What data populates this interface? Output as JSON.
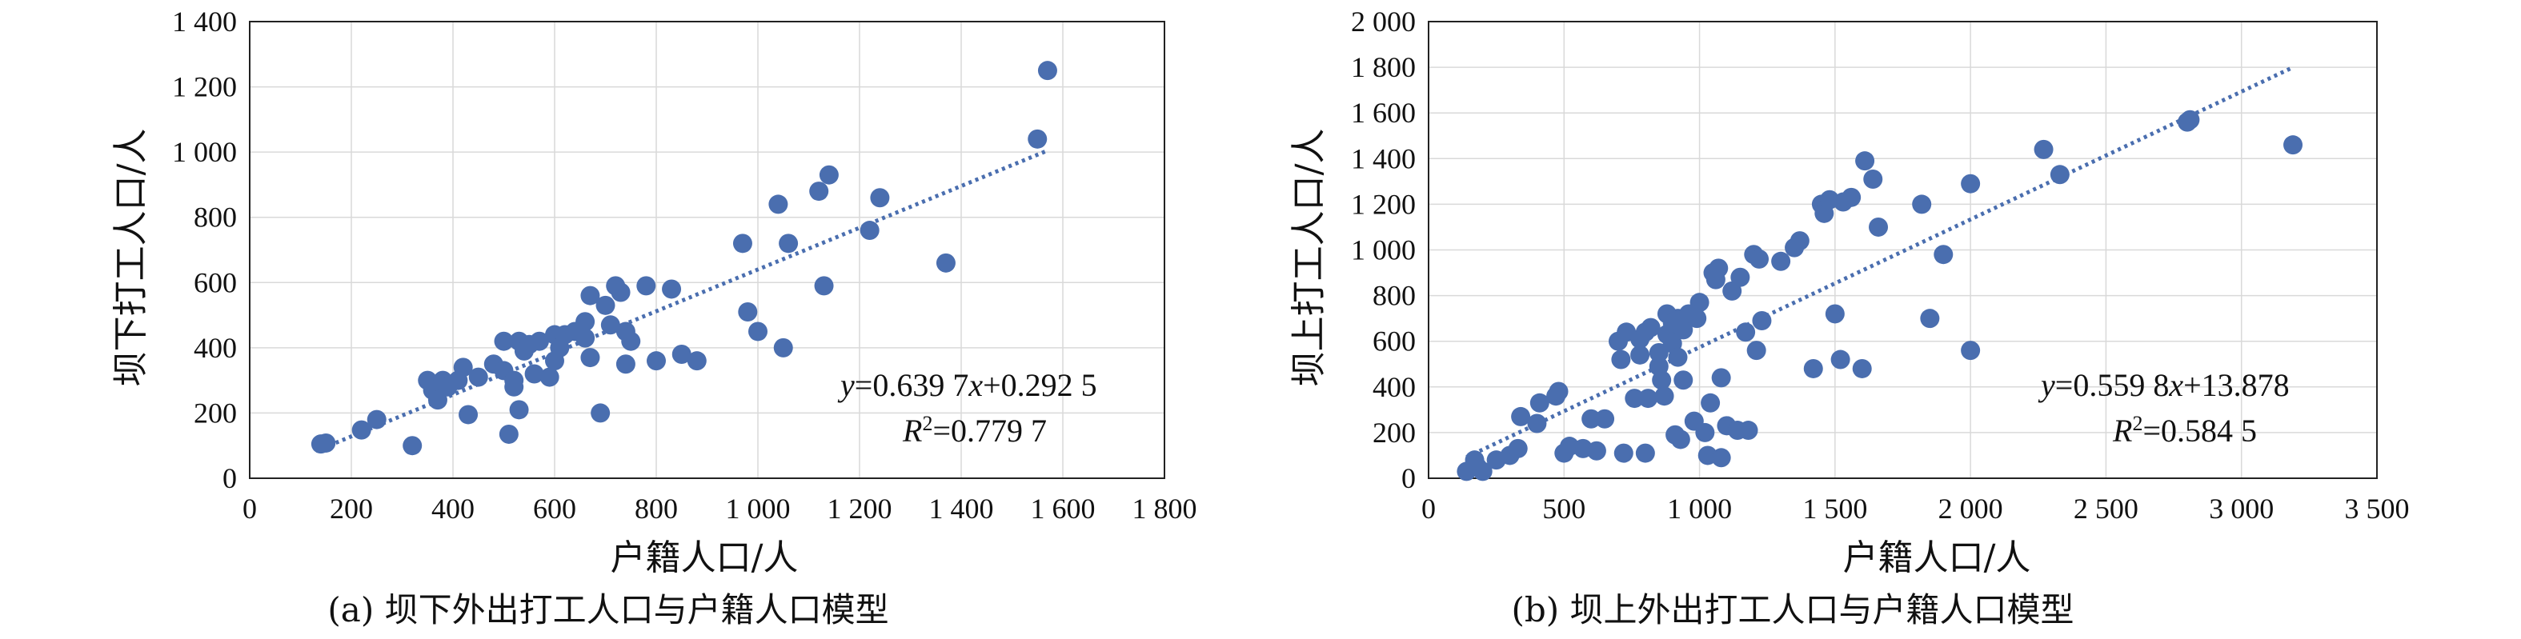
{
  "chart_data": [
    {
      "type": "scatter",
      "caption": "(a) 坝下外出打工人口与户籍人口模型",
      "xlabel": "户籍人口/人",
      "ylabel": "坝下打工人口/人",
      "xlim": [
        0,
        1800
      ],
      "ylim": [
        0,
        1400
      ],
      "xticks": [
        0,
        200,
        400,
        600,
        800,
        1000,
        1200,
        1400,
        1600,
        1800
      ],
      "yticks": [
        0,
        200,
        400,
        600,
        800,
        1000,
        1200,
        1400
      ],
      "xtick_labels": [
        "0",
        "200",
        "400",
        "600",
        "800",
        "1 000",
        "1 200",
        "1 400",
        "1 600",
        "1 800"
      ],
      "ytick_labels": [
        "0",
        "200",
        "400",
        "600",
        "800",
        "1 000",
        "1 200",
        "1 400"
      ],
      "grid": true,
      "equation_y": "y",
      "equation_rest": "=0.639 7",
      "equation_x": "x",
      "equation_tail": "+0.292 5",
      "r2_label": "R",
      "r2_sup": "2",
      "r2_value": "=0.779 7",
      "trendline": {
        "slope": 0.6397,
        "intercept": 0.2925,
        "x_range": [
          130,
          1570
        ]
      },
      "points": [
        [
          140,
          105
        ],
        [
          150,
          108
        ],
        [
          220,
          148
        ],
        [
          250,
          180
        ],
        [
          320,
          100
        ],
        [
          350,
          300
        ],
        [
          360,
          270
        ],
        [
          370,
          240
        ],
        [
          380,
          300
        ],
        [
          390,
          280
        ],
        [
          410,
          300
        ],
        [
          420,
          340
        ],
        [
          430,
          195
        ],
        [
          450,
          310
        ],
        [
          480,
          350
        ],
        [
          500,
          330
        ],
        [
          500,
          420
        ],
        [
          510,
          135
        ],
        [
          520,
          300
        ],
        [
          520,
          280
        ],
        [
          530,
          420
        ],
        [
          530,
          210
        ],
        [
          540,
          390
        ],
        [
          550,
          410
        ],
        [
          560,
          320
        ],
        [
          570,
          420
        ],
        [
          590,
          310
        ],
        [
          600,
          360
        ],
        [
          600,
          440
        ],
        [
          610,
          400
        ],
        [
          620,
          440
        ],
        [
          640,
          450
        ],
        [
          660,
          480
        ],
        [
          660,
          430
        ],
        [
          670,
          560
        ],
        [
          670,
          370
        ],
        [
          690,
          200
        ],
        [
          700,
          530
        ],
        [
          710,
          470
        ],
        [
          720,
          590
        ],
        [
          730,
          570
        ],
        [
          740,
          450
        ],
        [
          740,
          350
        ],
        [
          750,
          420
        ],
        [
          780,
          590
        ],
        [
          800,
          360
        ],
        [
          830,
          580
        ],
        [
          850,
          380
        ],
        [
          880,
          360
        ],
        [
          970,
          720
        ],
        [
          980,
          510
        ],
        [
          1000,
          450
        ],
        [
          1040,
          840
        ],
        [
          1050,
          400
        ],
        [
          1060,
          720
        ],
        [
          1120,
          880
        ],
        [
          1130,
          590
        ],
        [
          1140,
          930
        ],
        [
          1220,
          760
        ],
        [
          1240,
          860
        ],
        [
          1370,
          660
        ],
        [
          1550,
          1040
        ],
        [
          1570,
          1250
        ]
      ]
    },
    {
      "type": "scatter",
      "caption": "(b) 坝上外出打工人口与户籍人口模型",
      "xlabel": "户籍人口/人",
      "ylabel": "坝上打工人口/人",
      "xlim": [
        0,
        3500
      ],
      "ylim": [
        0,
        2000
      ],
      "xticks": [
        0,
        500,
        1000,
        1500,
        2000,
        2500,
        3000,
        3500
      ],
      "yticks": [
        0,
        200,
        400,
        600,
        800,
        1000,
        1200,
        1400,
        1600,
        1800,
        2000
      ],
      "xtick_labels": [
        "0",
        "500",
        "1 000",
        "1 500",
        "2 000",
        "2 500",
        "3 000",
        "3 500"
      ],
      "ytick_labels": [
        "0",
        "200",
        "400",
        "600",
        "800",
        "1 000",
        "1 200",
        "1 400",
        "1 600",
        "1 800",
        "2 000"
      ],
      "grid": true,
      "equation_y": "y",
      "equation_rest": "=0.559 8",
      "equation_x": "x",
      "equation_tail": "+13.878",
      "r2_label": "R",
      "r2_sup": "2",
      "r2_value": "=0.584 5",
      "trendline": {
        "slope": 0.5598,
        "intercept": 13.878,
        "x_range": [
          140,
          3190
        ]
      },
      "points": [
        [
          140,
          30
        ],
        [
          170,
          80
        ],
        [
          180,
          50
        ],
        [
          200,
          30
        ],
        [
          250,
          80
        ],
        [
          300,
          100
        ],
        [
          330,
          130
        ],
        [
          340,
          270
        ],
        [
          400,
          240
        ],
        [
          410,
          330
        ],
        [
          470,
          360
        ],
        [
          480,
          380
        ],
        [
          500,
          110
        ],
        [
          520,
          140
        ],
        [
          570,
          130
        ],
        [
          600,
          260
        ],
        [
          620,
          120
        ],
        [
          650,
          260
        ],
        [
          700,
          600
        ],
        [
          710,
          520
        ],
        [
          720,
          110
        ],
        [
          730,
          640
        ],
        [
          760,
          350
        ],
        [
          780,
          540
        ],
        [
          780,
          610
        ],
        [
          800,
          640
        ],
        [
          800,
          110
        ],
        [
          810,
          350
        ],
        [
          820,
          660
        ],
        [
          850,
          490
        ],
        [
          850,
          550
        ],
        [
          860,
          430
        ],
        [
          870,
          360
        ],
        [
          880,
          720
        ],
        [
          880,
          630
        ],
        [
          900,
          680
        ],
        [
          900,
          590
        ],
        [
          910,
          190
        ],
        [
          920,
          700
        ],
        [
          920,
          530
        ],
        [
          930,
          170
        ],
        [
          940,
          430
        ],
        [
          940,
          650
        ],
        [
          960,
          720
        ],
        [
          980,
          250
        ],
        [
          990,
          700
        ],
        [
          1000,
          770
        ],
        [
          1020,
          200
        ],
        [
          1030,
          100
        ],
        [
          1040,
          330
        ],
        [
          1050,
          900
        ],
        [
          1060,
          870
        ],
        [
          1070,
          920
        ],
        [
          1080,
          440
        ],
        [
          1080,
          90
        ],
        [
          1100,
          230
        ],
        [
          1120,
          820
        ],
        [
          1140,
          210
        ],
        [
          1150,
          880
        ],
        [
          1170,
          640
        ],
        [
          1180,
          210
        ],
        [
          1200,
          980
        ],
        [
          1210,
          560
        ],
        [
          1220,
          960
        ],
        [
          1230,
          690
        ],
        [
          1300,
          950
        ],
        [
          1350,
          1010
        ],
        [
          1370,
          1040
        ],
        [
          1420,
          480
        ],
        [
          1450,
          1200
        ],
        [
          1460,
          1160
        ],
        [
          1480,
          1220
        ],
        [
          1500,
          720
        ],
        [
          1520,
          520
        ],
        [
          1530,
          1210
        ],
        [
          1560,
          1230
        ],
        [
          1600,
          480
        ],
        [
          1610,
          1390
        ],
        [
          1640,
          1310
        ],
        [
          1660,
          1100
        ],
        [
          1820,
          1200
        ],
        [
          1850,
          700
        ],
        [
          1900,
          980
        ],
        [
          2000,
          1290
        ],
        [
          2000,
          560
        ],
        [
          2270,
          1440
        ],
        [
          2330,
          1330
        ],
        [
          2800,
          1560
        ],
        [
          2810,
          1570
        ],
        [
          3190,
          1460
        ]
      ]
    }
  ]
}
